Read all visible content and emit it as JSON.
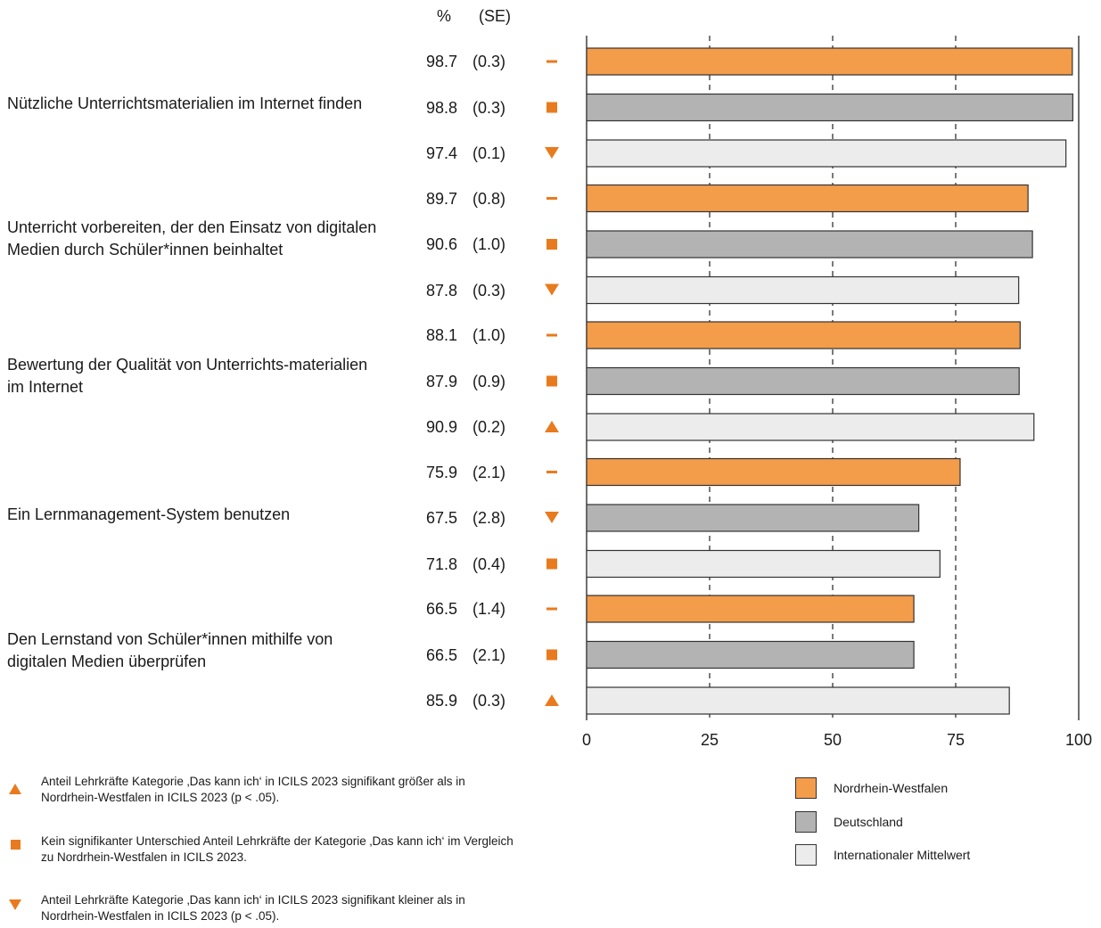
{
  "header": {
    "pct_label": "%",
    "se_label": "(SE)"
  },
  "colors": {
    "nrw": "#f39c4a",
    "de": "#b3b3b4",
    "int": "#ececec",
    "marker": "#e87b1e",
    "border": "#333333"
  },
  "chart_data": {
    "type": "bar",
    "orientation": "horizontal",
    "xlim": [
      0,
      100
    ],
    "ticks": [
      "0",
      "25",
      "50",
      "75",
      "100"
    ],
    "grid": "dashed vertical lines at 25, 50, 75",
    "legend_position": "bottom-right",
    "series": [
      {
        "name": "Nordrhein-Westfalen",
        "color": "#f39c4a"
      },
      {
        "name": "Deutschland",
        "color": "#b3b3b4"
      },
      {
        "name": "Internationaler Mittelwert",
        "color": "#ececec"
      }
    ],
    "groups": [
      {
        "label": "Nützliche Unterrichtsmaterialien im Internet finden",
        "rows": [
          {
            "value": 98.7,
            "value_text": "98.7",
            "se": "(0.3)",
            "marker": "dash"
          },
          {
            "value": 98.8,
            "value_text": "98.8",
            "se": "(0.3)",
            "marker": "square"
          },
          {
            "value": 97.4,
            "value_text": "97.4",
            "se": "(0.1)",
            "marker": "down"
          }
        ]
      },
      {
        "label": "Unterricht vorbereiten, der den Einsatz von digitalen Medien durch Schüler*innen beinhaltet",
        "rows": [
          {
            "value": 89.7,
            "value_text": "89.7",
            "se": "(0.8)",
            "marker": "dash"
          },
          {
            "value": 90.6,
            "value_text": "90.6",
            "se": "(1.0)",
            "marker": "square"
          },
          {
            "value": 87.8,
            "value_text": "87.8",
            "se": "(0.3)",
            "marker": "down"
          }
        ]
      },
      {
        "label": "Bewertung der Qualität von Unterrichts-materialien im Internet",
        "rows": [
          {
            "value": 88.1,
            "value_text": "88.1",
            "se": "(1.0)",
            "marker": "dash"
          },
          {
            "value": 87.9,
            "value_text": "87.9",
            "se": "(0.9)",
            "marker": "square"
          },
          {
            "value": 90.9,
            "value_text": "90.9",
            "se": "(0.2)",
            "marker": "up"
          }
        ]
      },
      {
        "label": "Ein Lernmanagement-System benutzen",
        "rows": [
          {
            "value": 75.9,
            "value_text": "75.9",
            "se": "(2.1)",
            "marker": "dash"
          },
          {
            "value": 67.5,
            "value_text": "67.5",
            "se": "(2.8)",
            "marker": "down"
          },
          {
            "value": 71.8,
            "value_text": "71.8",
            "se": "(0.4)",
            "marker": "square"
          }
        ]
      },
      {
        "label": "Den Lernstand von Schüler*innen mithilfe von digitalen Medien überprüfen",
        "rows": [
          {
            "value": 66.5,
            "value_text": "66.5",
            "se": "(1.4)",
            "marker": "dash"
          },
          {
            "value": 66.5,
            "value_text": "66.5",
            "se": "(2.1)",
            "marker": "square"
          },
          {
            "value": 85.9,
            "value_text": "85.9",
            "se": "(0.3)",
            "marker": "up"
          }
        ]
      }
    ]
  },
  "footnotes": [
    {
      "marker": "up",
      "text": "Anteil Lehrkräfte Kategorie ‚Das kann ich‘ in ICILS 2023 signifikant größer als in Nordrhein-Westfalen in ICILS 2023 (p < .05)."
    },
    {
      "marker": "square",
      "text": "Kein signifikanter Unterschied Anteil Lehrkräfte der Kategorie ‚Das kann ich‘ im Vergleich zu Nordrhein-Westfalen in ICILS 2023."
    },
    {
      "marker": "down",
      "text": "Anteil Lehrkräfte Kategorie ‚Das kann ich‘ in ICILS 2023 signifikant kleiner als in Nordrhein-Westfalen in ICILS 2023 (p < .05)."
    }
  ]
}
